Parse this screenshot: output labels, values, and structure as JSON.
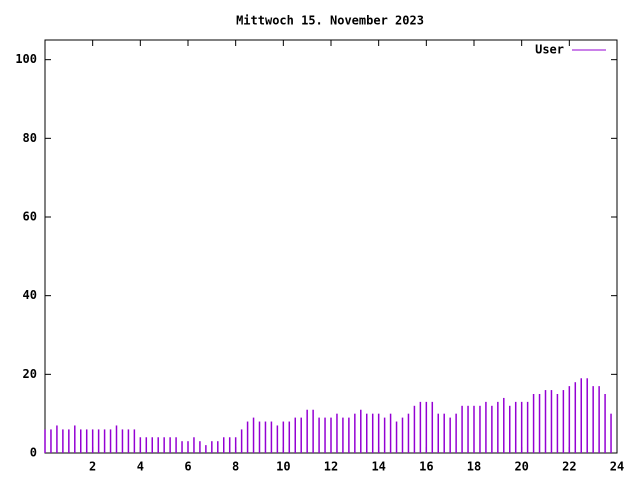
{
  "chart_data": {
    "type": "impulses",
    "title": "Mittwoch 15. November 2023",
    "x": [
      0,
      0.25,
      0.5,
      0.75,
      1,
      1.25,
      1.5,
      1.75,
      2,
      2.25,
      2.5,
      2.75,
      3,
      3.25,
      3.5,
      3.75,
      4,
      4.25,
      4.5,
      4.75,
      5,
      5.25,
      5.5,
      5.75,
      6,
      6.25,
      6.5,
      6.75,
      7,
      7.25,
      7.5,
      7.75,
      8,
      8.25,
      8.5,
      8.75,
      9,
      9.25,
      9.5,
      9.75,
      10,
      10.25,
      10.5,
      10.75,
      11,
      11.25,
      11.5,
      11.75,
      12,
      12.25,
      12.5,
      12.75,
      13,
      13.25,
      13.5,
      13.75,
      14,
      14.25,
      14.5,
      14.75,
      15,
      15.25,
      15.5,
      15.75,
      16,
      16.25,
      16.5,
      16.75,
      17,
      17.25,
      17.5,
      17.75,
      18,
      18.25,
      18.5,
      18.75,
      19,
      19.25,
      19.5,
      19.75,
      20,
      20.25,
      20.5,
      20.75,
      21,
      21.25,
      21.5,
      21.75,
      22,
      22.25,
      22.5,
      22.75,
      23,
      23.25,
      23.5,
      23.75
    ],
    "series": [
      {
        "name": "User",
        "color": "#9400d3",
        "values": [
          6,
          6,
          7,
          6,
          6,
          7,
          6,
          6,
          6,
          6,
          6,
          6,
          7,
          6,
          6,
          6,
          4,
          4,
          4,
          4,
          4,
          4,
          4,
          3,
          3,
          4,
          3,
          2,
          3,
          3,
          4,
          4,
          4,
          6,
          8,
          9,
          8,
          8,
          8,
          7,
          8,
          8,
          9,
          9,
          11,
          11,
          9,
          9,
          9,
          10,
          9,
          9,
          10,
          11,
          10,
          10,
          10,
          9,
          10,
          8,
          9,
          10,
          12,
          13,
          13,
          13,
          10,
          10,
          9,
          10,
          12,
          12,
          12,
          12,
          13,
          12,
          13,
          14,
          12,
          13,
          13,
          13,
          15,
          15,
          16,
          16,
          15,
          16,
          17,
          18,
          19,
          19,
          17,
          17,
          15,
          10
        ]
      }
    ],
    "xlim": [
      0,
      24
    ],
    "xticks": [
      2,
      4,
      6,
      8,
      10,
      12,
      14,
      16,
      18,
      20,
      22,
      24
    ],
    "ylim": [
      0,
      105
    ],
    "yticks": [
      0,
      20,
      40,
      60,
      80,
      100
    ]
  }
}
